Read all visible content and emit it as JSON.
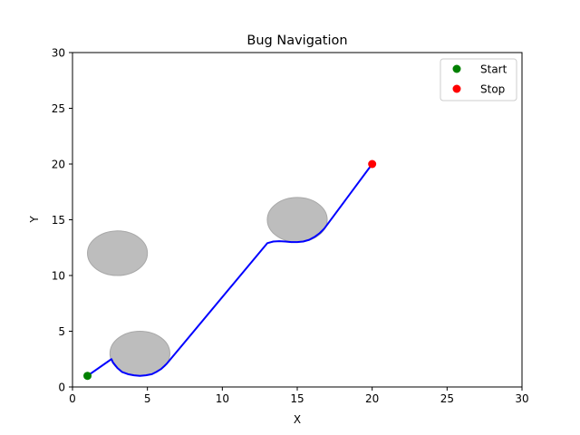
{
  "chart_data": {
    "type": "scatter",
    "title": "Bug Navigation",
    "xlabel": "X",
    "ylabel": "Y",
    "xlim": [
      0,
      30
    ],
    "ylim": [
      0,
      30
    ],
    "xticks": [
      0,
      5,
      10,
      15,
      20,
      25,
      30
    ],
    "yticks": [
      0,
      5,
      10,
      15,
      20,
      25,
      30
    ],
    "grid": false,
    "legend_position": "top-right",
    "obstacles": [
      {
        "cx": 3,
        "cy": 12,
        "r": 2,
        "color": "#bdbdbd"
      },
      {
        "cx": 4.5,
        "cy": 3,
        "r": 2,
        "color": "#bdbdbd"
      },
      {
        "cx": 15,
        "cy": 15,
        "r": 2,
        "color": "#bdbdbd"
      }
    ],
    "path": {
      "color": "#0000ff",
      "x": [
        1,
        2.6,
        2.7,
        3.0,
        3.3,
        3.7,
        4.1,
        4.5,
        4.9,
        5.3,
        5.6,
        5.9,
        6.15,
        6.3,
        13.0,
        13.4,
        13.8,
        14.2,
        14.6,
        15.0,
        15.4,
        15.8,
        16.2,
        16.5,
        16.8,
        20
      ],
      "y": [
        1,
        2.5,
        2.2,
        1.7,
        1.35,
        1.15,
        1.05,
        1.0,
        1.05,
        1.15,
        1.35,
        1.6,
        1.9,
        2.1,
        12.9,
        13.05,
        13.08,
        13.05,
        13.0,
        13.0,
        13.05,
        13.2,
        13.5,
        13.8,
        14.2,
        20
      ]
    },
    "series": [
      {
        "name": "Start",
        "x": [
          1
        ],
        "y": [
          1
        ],
        "color": "#008000"
      },
      {
        "name": "Stop",
        "x": [
          20
        ],
        "y": [
          20
        ],
        "color": "#ff0000"
      }
    ]
  }
}
